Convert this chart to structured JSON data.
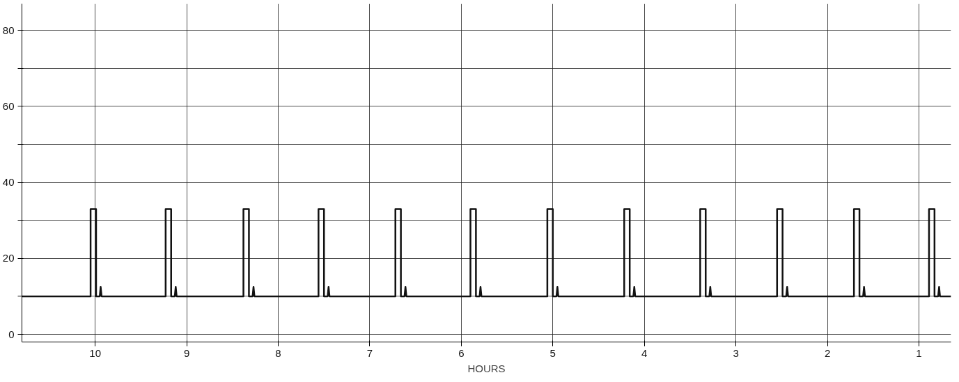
{
  "chart_data": {
    "type": "line",
    "xlabel": "HOURS",
    "x": [
      10.8,
      10.05,
      10.05,
      9.99,
      9.99,
      9.95,
      9.94,
      9.93,
      9.23,
      9.23,
      9.17,
      9.17,
      9.13,
      9.12,
      9.11,
      8.38,
      8.38,
      8.32,
      8.32,
      8.28,
      8.27,
      8.26,
      7.56,
      7.56,
      7.5,
      7.5,
      7.46,
      7.45,
      7.44,
      6.72,
      6.72,
      6.66,
      6.66,
      6.62,
      6.61,
      6.6,
      5.9,
      5.9,
      5.84,
      5.84,
      5.8,
      5.79,
      5.78,
      5.06,
      5.06,
      5.0,
      5.0,
      4.96,
      4.95,
      4.94,
      4.22,
      4.22,
      4.16,
      4.16,
      4.12,
      4.11,
      4.1,
      3.39,
      3.39,
      3.33,
      3.33,
      3.29,
      3.28,
      3.27,
      2.55,
      2.55,
      2.49,
      2.49,
      2.45,
      2.44,
      2.43,
      1.71,
      1.71,
      1.65,
      1.65,
      1.61,
      1.6,
      1.59,
      0.89,
      0.89,
      0.83,
      0.83,
      0.79,
      0.78,
      0.77,
      0.65
    ],
    "series": [
      {
        "color": "#111111",
        "values": [
          10,
          10,
          33,
          33,
          10,
          10,
          12.5,
          10,
          10,
          33,
          33,
          10,
          10,
          12.5,
          10,
          10,
          33,
          33,
          10,
          10,
          12.5,
          10,
          10,
          33,
          33,
          10,
          10,
          12.5,
          10,
          10,
          33,
          33,
          10,
          10,
          12.5,
          10,
          10,
          33,
          33,
          10,
          10,
          12.5,
          10,
          10,
          33,
          33,
          10,
          10,
          12.5,
          10,
          10,
          33,
          33,
          10,
          10,
          12.5,
          10,
          10,
          33,
          33,
          10,
          10,
          12.5,
          10,
          10,
          33,
          33,
          10,
          10,
          12.5,
          10,
          10,
          33,
          33,
          10,
          10,
          12.5,
          10,
          10,
          33,
          33,
          10,
          10,
          12.5,
          10,
          10
        ]
      }
    ],
    "xlim": [
      10.8,
      0.65
    ],
    "ylim": [
      -2,
      87
    ],
    "xticks": [
      10,
      9,
      8,
      7,
      6,
      5,
      4,
      3,
      2,
      1
    ],
    "yticks": [
      0,
      {
        "value": 10,
        "label": null
      },
      20,
      {
        "value": 30,
        "label": null
      },
      40,
      {
        "value": 50,
        "label": null
      },
      60,
      {
        "value": 70,
        "label": null
      },
      80
    ],
    "grid": true,
    "line_style": "solid",
    "marker": "none"
  }
}
